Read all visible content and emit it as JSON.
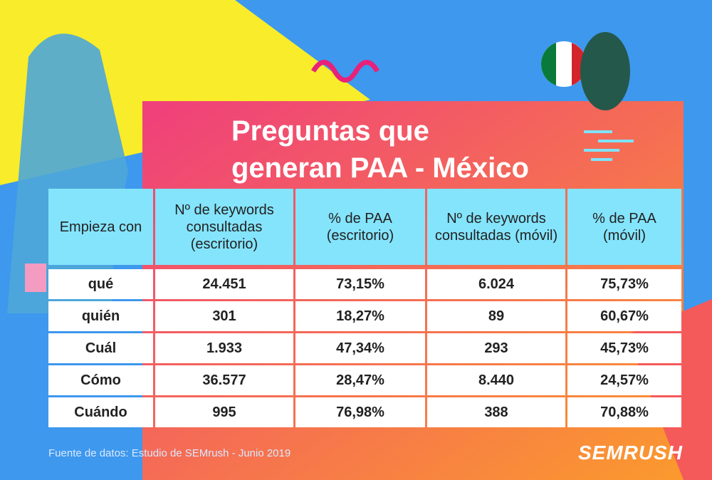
{
  "title": [
    "Preguntas que",
    "generan PAA - México"
  ],
  "table": {
    "header": [
      "Empieza con",
      "Nº de keywords consultadas (escritorio)",
      "% de PAA (escritorio)",
      "Nº de keywords consultadas (móvil)",
      "% de PAA (móvil)"
    ],
    "rows": [
      [
        "qué",
        "24.451",
        "73,15%",
        "6.024",
        "75,73%"
      ],
      [
        "quién",
        "301",
        "18,27%",
        "89",
        "60,67%"
      ],
      [
        "Cuál",
        "1.933",
        "47,34%",
        "293",
        "45,73%"
      ],
      [
        "Cómo",
        "36.577",
        "28,47%",
        "8.440",
        "24,57%"
      ],
      [
        "Cuándo",
        "995",
        "76,98%",
        "388",
        "70,88%"
      ]
    ]
  },
  "footer": {
    "source": "Fuente de datos: Estudio de SEMrush - Junio 2019",
    "logo": "SEMRUSH"
  }
}
